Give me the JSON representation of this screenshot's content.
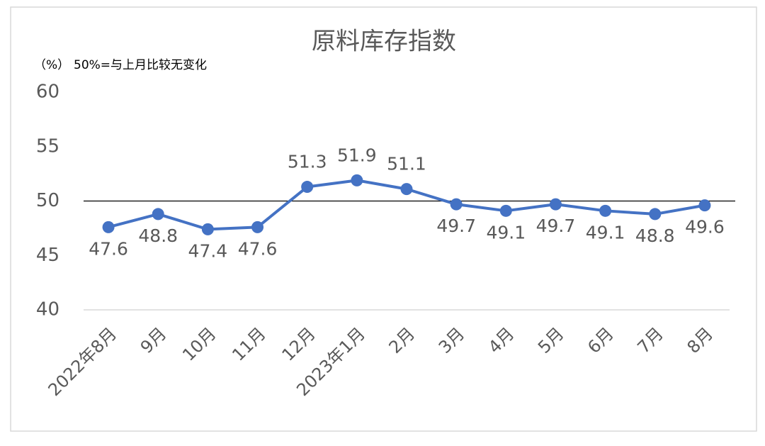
{
  "chart_data": {
    "type": "line",
    "title": "原料库存指数",
    "y_label": "（%）",
    "note": "50%=与上月比较无变化",
    "categories": [
      "2022年8月",
      "9月",
      "10月",
      "11月",
      "12月",
      "2023年1月",
      "2月",
      "3月",
      "4月",
      "5月",
      "6月",
      "7月",
      "8月"
    ],
    "series": [
      {
        "name": "原料库存指数",
        "color": "#4472c4",
        "values": [
          47.6,
          48.8,
          47.4,
          47.6,
          51.3,
          51.9,
          51.1,
          49.7,
          49.1,
          49.7,
          49.1,
          48.8,
          49.6
        ]
      }
    ],
    "ylim": [
      40,
      60
    ],
    "yticks": [
      40,
      45,
      50,
      55,
      60
    ],
    "grid": false,
    "reference_line": 50,
    "legend": false
  }
}
